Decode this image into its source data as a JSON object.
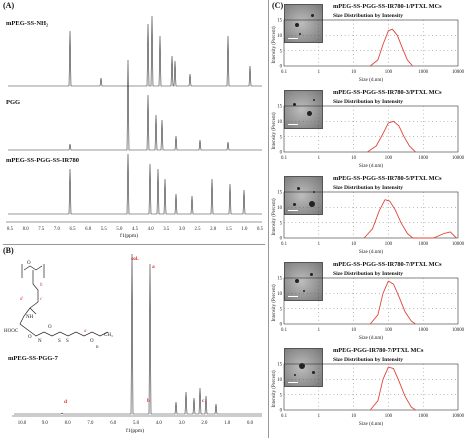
{
  "panel_a": {
    "label": "(A)",
    "spectra": [
      {
        "title": "mPEG-SS-NH₂"
      },
      {
        "title": "PGG"
      },
      {
        "title": "mPEG-SS-PGG-SS-IR780"
      }
    ],
    "ticks": [
      "8.5",
      "8.0",
      "7.5",
      "7.0",
      "6.5",
      "6.0",
      "5.5",
      "5.0",
      "4.5",
      "4.0",
      "3.5",
      "3.0",
      "2.5",
      "2.0",
      "1.5",
      "1.0",
      "0.5"
    ],
    "xlabel": "f1(ppm)"
  },
  "panel_b": {
    "label": "(B)",
    "compound": "mPEG-SS-PGG-7",
    "peak_labels": [
      "sol.",
      "a",
      "b",
      "c",
      "d"
    ],
    "ticks": [
      "10.0",
      "9.0",
      "8.0",
      "7.0",
      "6.0",
      "5.0",
      "4.0",
      "3.0",
      "2.0",
      "1.0",
      "0.0"
    ],
    "xlabel": "f1(ppm)",
    "structure_text": [
      "O",
      "NH",
      "HOOC",
      "O",
      "N",
      "O",
      "S",
      "S",
      "O",
      "n",
      "CH₃",
      "a",
      "b",
      "c",
      "d"
    ]
  },
  "panel_c": {
    "label": "(C)",
    "size_title": "Size Distribution by Intensity",
    "ylabel": "Intensity (Percent)",
    "xlabel": "Size (d.nm)",
    "xticks": [
      "0.1",
      "1",
      "10",
      "100",
      "1000",
      "10000"
    ],
    "yticks": [
      "0",
      "5",
      "10",
      "15"
    ],
    "samples": [
      {
        "title": "mPEG-SS-PGG-SS-IR780-1/PTXL MCs"
      },
      {
        "title": "mPEG-SS-PGG-SS-IR780-3/PTXL MCs"
      },
      {
        "title": "mPEG-SS-PGG-SS-IR780-5/PTXL MCs"
      },
      {
        "title": "mPEG-SS-PGG-SS-IR780-7/PTXL MCs"
      },
      {
        "title": "mPEG-PGG-IR780-7/PTXL MCs"
      }
    ]
  },
  "chart_data": [
    {
      "type": "line",
      "title": "mPEG-SS-PGG-SS-IR780-1/PTXL MCs",
      "subtitle": "Size Distribution by Intensity",
      "xlabel": "Size (d.nm)",
      "ylabel": "Intensity (Percent)",
      "xscale": "log",
      "xlim": [
        0.1,
        10000
      ],
      "ylim": [
        0,
        15
      ],
      "series": [
        {
          "values_x": [
            30,
            50,
            70,
            100,
            130,
            180,
            250,
            350,
            500
          ],
          "values_y": [
            0,
            2,
            7,
            11.5,
            12,
            10,
            6,
            2,
            0
          ]
        }
      ]
    },
    {
      "type": "line",
      "title": "mPEG-SS-PGG-SS-IR780-3/PTXL MCs",
      "subtitle": "Size Distribution by Intensity",
      "xlabel": "Size (d.nm)",
      "ylabel": "Intensity (Percent)",
      "xscale": "log",
      "xlim": [
        0.1,
        10000
      ],
      "ylim": [
        0,
        15
      ],
      "series": [
        {
          "values_x": [
            25,
            45,
            70,
            100,
            140,
            200,
            280,
            400,
            600
          ],
          "values_y": [
            0,
            2,
            6,
            9.5,
            10,
            8.5,
            5,
            2,
            0
          ]
        }
      ]
    },
    {
      "type": "line",
      "title": "mPEG-SS-PGG-SS-IR780-5/PTXL MCs",
      "subtitle": "Size Distribution by Intensity",
      "xlabel": "Size (d.nm)",
      "ylabel": "Intensity (Percent)",
      "xscale": "log",
      "xlim": [
        0.1,
        10000
      ],
      "ylim": [
        0,
        15
      ],
      "series": [
        {
          "values_x": [
            20,
            35,
            55,
            80,
            110,
            160,
            230,
            350,
            500,
            2000,
            4000,
            6000,
            9000
          ],
          "values_y": [
            0,
            3,
            9,
            12.5,
            12,
            9,
            5,
            1.5,
            0,
            0,
            1.5,
            2,
            0
          ]
        }
      ]
    },
    {
      "type": "line",
      "title": "mPEG-SS-PGG-SS-IR780-7/PTXL MCs",
      "subtitle": "Size Distribution by Intensity",
      "xlabel": "Size (d.nm)",
      "ylabel": "Intensity (Percent)",
      "xscale": "log",
      "xlim": [
        0.1,
        10000
      ],
      "ylim": [
        0,
        15
      ],
      "series": [
        {
          "values_x": [
            30,
            50,
            70,
            100,
            140,
            200,
            300,
            450,
            600
          ],
          "values_y": [
            0,
            3,
            10,
            14,
            13,
            9,
            4,
            1,
            0
          ]
        }
      ]
    },
    {
      "type": "line",
      "title": "mPEG-PGG-IR780-7/PTXL MCs",
      "subtitle": "Size Distribution by Intensity",
      "xlabel": "Size (d.nm)",
      "ylabel": "Intensity (Percent)",
      "xscale": "log",
      "xlim": [
        0.1,
        10000
      ],
      "ylim": [
        0,
        15
      ],
      "series": [
        {
          "values_x": [
            30,
            50,
            70,
            100,
            140,
            200,
            300,
            450,
            600
          ],
          "values_y": [
            0,
            3,
            10,
            14,
            13.5,
            9.5,
            4.5,
            1,
            0
          ]
        }
      ]
    }
  ]
}
